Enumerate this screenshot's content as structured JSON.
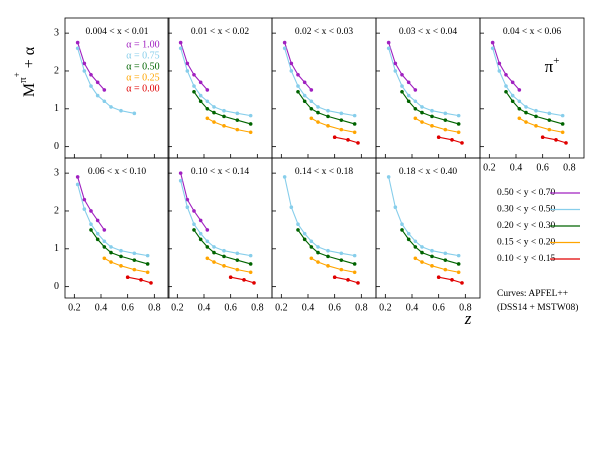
{
  "chart_data": {
    "type": "line",
    "y_label": [
      "M",
      "π",
      "+",
      " + α"
    ],
    "x_label": "z",
    "particle": [
      "π",
      "+"
    ],
    "xlim": [
      0.13,
      0.91
    ],
    "ylim": [
      -0.3,
      3.4
    ],
    "xticks": [
      0.2,
      0.4,
      0.6,
      0.8
    ],
    "yticks": [
      0,
      1,
      2,
      3
    ],
    "alpha_labels": [
      {
        "text": "α = 1.00",
        "color": "#a020c0"
      },
      {
        "text": "α = 0.75",
        "color": "#87ceeb"
      },
      {
        "text": "α = 0.50",
        "color": "#006400"
      },
      {
        "text": "α = 0.25",
        "color": "#ffa500"
      },
      {
        "text": "α = 0.00",
        "color": "#e00000"
      }
    ],
    "legend": [
      {
        "name": "0.50 < y < 0.70",
        "color": "#a020c0"
      },
      {
        "name": "0.30 < y < 0.50",
        "color": "#87ceeb"
      },
      {
        "name": "0.20 < y < 0.30",
        "color": "#006400"
      },
      {
        "name": "0.15 < y < 0.20",
        "color": "#ffa500"
      },
      {
        "name": "0.10 < y < 0.15",
        "color": "#e00000"
      }
    ],
    "note": [
      "Curves: APFEL++",
      "(DSS14 + MSTW08)"
    ],
    "panels": [
      {
        "title": "0.004 < x < 0.01",
        "series": [
          {
            "color": "#a020c0",
            "x": [
              0.225,
              0.275,
              0.325,
              0.375,
              0.425
            ],
            "values": [
              2.75,
              2.2,
              1.9,
              1.7,
              1.5
            ]
          },
          {
            "color": "#87ceeb",
            "x": [
              0.225,
              0.275,
              0.325,
              0.375,
              0.425,
              0.475,
              0.55,
              0.65
            ],
            "values": [
              2.6,
              2.0,
              1.6,
              1.35,
              1.2,
              1.05,
              0.95,
              0.88
            ]
          }
        ]
      },
      {
        "title": "0.01 < x < 0.02",
        "series": [
          {
            "color": "#a020c0",
            "x": [
              0.225,
              0.275,
              0.325,
              0.375,
              0.425
            ],
            "values": [
              2.75,
              2.2,
              1.9,
              1.7,
              1.5
            ]
          },
          {
            "color": "#87ceeb",
            "x": [
              0.225,
              0.275,
              0.325,
              0.375,
              0.425,
              0.475,
              0.55,
              0.65,
              0.75
            ],
            "values": [
              2.6,
              2.0,
              1.6,
              1.35,
              1.2,
              1.05,
              0.95,
              0.88,
              0.82
            ]
          },
          {
            "color": "#006400",
            "x": [
              0.325,
              0.375,
              0.425,
              0.475,
              0.55,
              0.65,
              0.75
            ],
            "values": [
              1.45,
              1.2,
              1.0,
              0.9,
              0.8,
              0.7,
              0.6
            ]
          },
          {
            "color": "#ffa500",
            "x": [
              0.425,
              0.475,
              0.55,
              0.65,
              0.75
            ],
            "values": [
              0.75,
              0.65,
              0.55,
              0.45,
              0.38
            ]
          }
        ]
      },
      {
        "title": "0.02 < x < 0.03",
        "series": [
          {
            "color": "#a020c0",
            "x": [
              0.225,
              0.275,
              0.325,
              0.375,
              0.425
            ],
            "values": [
              2.75,
              2.2,
              1.9,
              1.7,
              1.5
            ]
          },
          {
            "color": "#87ceeb",
            "x": [
              0.225,
              0.275,
              0.325,
              0.375,
              0.425,
              0.475,
              0.55,
              0.65,
              0.75
            ],
            "values": [
              2.6,
              2.0,
              1.6,
              1.35,
              1.2,
              1.05,
              0.95,
              0.88,
              0.82
            ]
          },
          {
            "color": "#006400",
            "x": [
              0.325,
              0.375,
              0.425,
              0.475,
              0.55,
              0.65,
              0.75
            ],
            "values": [
              1.45,
              1.2,
              1.0,
              0.9,
              0.8,
              0.7,
              0.6
            ]
          },
          {
            "color": "#ffa500",
            "x": [
              0.425,
              0.475,
              0.55,
              0.65,
              0.75
            ],
            "values": [
              0.75,
              0.65,
              0.55,
              0.45,
              0.38
            ]
          },
          {
            "color": "#e00000",
            "x": [
              0.6,
              0.7,
              0.775
            ],
            "values": [
              0.25,
              0.18,
              0.1
            ]
          }
        ]
      },
      {
        "title": "0.03 < x < 0.04",
        "series": [
          {
            "color": "#a020c0",
            "x": [
              0.225,
              0.275,
              0.325,
              0.375,
              0.425
            ],
            "values": [
              2.75,
              2.2,
              1.9,
              1.7,
              1.5
            ]
          },
          {
            "color": "#87ceeb",
            "x": [
              0.225,
              0.275,
              0.325,
              0.375,
              0.425,
              0.475,
              0.55,
              0.65,
              0.75
            ],
            "values": [
              2.6,
              2.0,
              1.6,
              1.35,
              1.2,
              1.05,
              0.95,
              0.88,
              0.82
            ]
          },
          {
            "color": "#006400",
            "x": [
              0.325,
              0.375,
              0.425,
              0.475,
              0.55,
              0.65,
              0.75
            ],
            "values": [
              1.45,
              1.2,
              1.0,
              0.9,
              0.8,
              0.7,
              0.6
            ]
          },
          {
            "color": "#ffa500",
            "x": [
              0.425,
              0.475,
              0.55,
              0.65,
              0.75
            ],
            "values": [
              0.75,
              0.65,
              0.55,
              0.45,
              0.38
            ]
          },
          {
            "color": "#e00000",
            "x": [
              0.6,
              0.7,
              0.775
            ],
            "values": [
              0.25,
              0.18,
              0.1
            ]
          }
        ]
      },
      {
        "title": "0.04 < x < 0.06",
        "series": [
          {
            "color": "#a020c0",
            "x": [
              0.225,
              0.275,
              0.325,
              0.375,
              0.425
            ],
            "values": [
              2.75,
              2.2,
              1.9,
              1.7,
              1.5
            ]
          },
          {
            "color": "#87ceeb",
            "x": [
              0.225,
              0.275,
              0.325,
              0.375,
              0.425,
              0.475,
              0.55,
              0.65,
              0.75
            ],
            "values": [
              2.6,
              2.0,
              1.6,
              1.35,
              1.2,
              1.05,
              0.95,
              0.88,
              0.82
            ]
          },
          {
            "color": "#006400",
            "x": [
              0.325,
              0.375,
              0.425,
              0.475,
              0.55,
              0.65,
              0.75
            ],
            "values": [
              1.45,
              1.2,
              1.0,
              0.9,
              0.8,
              0.7,
              0.6
            ]
          },
          {
            "color": "#ffa500",
            "x": [
              0.425,
              0.475,
              0.55,
              0.65,
              0.75
            ],
            "values": [
              0.75,
              0.65,
              0.55,
              0.45,
              0.38
            ]
          },
          {
            "color": "#e00000",
            "x": [
              0.6,
              0.7,
              0.775
            ],
            "values": [
              0.25,
              0.18,
              0.1
            ]
          }
        ]
      },
      {
        "title": "0.06 < x < 0.10",
        "series": [
          {
            "color": "#a020c0",
            "x": [
              0.225,
              0.275,
              0.325,
              0.375,
              0.425
            ],
            "values": [
              2.9,
              2.3,
              2.0,
              1.75,
              1.5
            ]
          },
          {
            "color": "#87ceeb",
            "x": [
              0.225,
              0.275,
              0.325,
              0.375,
              0.425,
              0.475,
              0.55,
              0.65,
              0.75
            ],
            "values": [
              2.7,
              2.05,
              1.65,
              1.4,
              1.2,
              1.05,
              0.95,
              0.88,
              0.82
            ]
          },
          {
            "color": "#006400",
            "x": [
              0.325,
              0.375,
              0.425,
              0.475,
              0.55,
              0.65,
              0.75
            ],
            "values": [
              1.5,
              1.25,
              1.05,
              0.9,
              0.8,
              0.7,
              0.6
            ]
          },
          {
            "color": "#ffa500",
            "x": [
              0.425,
              0.475,
              0.55,
              0.65,
              0.75
            ],
            "values": [
              0.75,
              0.65,
              0.55,
              0.45,
              0.38
            ]
          },
          {
            "color": "#e00000",
            "x": [
              0.6,
              0.7,
              0.775
            ],
            "values": [
              0.25,
              0.18,
              0.1
            ]
          }
        ]
      },
      {
        "title": "0.10 < x < 0.14",
        "series": [
          {
            "color": "#a020c0",
            "x": [
              0.225,
              0.275,
              0.325,
              0.375,
              0.425
            ],
            "values": [
              3.0,
              2.3,
              2.0,
              1.75,
              1.5
            ]
          },
          {
            "color": "#87ceeb",
            "x": [
              0.225,
              0.275,
              0.325,
              0.375,
              0.425,
              0.475,
              0.55,
              0.65,
              0.75
            ],
            "values": [
              2.8,
              2.1,
              1.65,
              1.4,
              1.2,
              1.05,
              0.95,
              0.88,
              0.82
            ]
          },
          {
            "color": "#006400",
            "x": [
              0.325,
              0.375,
              0.425,
              0.475,
              0.55,
              0.65,
              0.75
            ],
            "values": [
              1.5,
              1.25,
              1.05,
              0.9,
              0.8,
              0.7,
              0.6
            ]
          },
          {
            "color": "#ffa500",
            "x": [
              0.425,
              0.475,
              0.55,
              0.65,
              0.75
            ],
            "values": [
              0.75,
              0.65,
              0.55,
              0.45,
              0.38
            ]
          },
          {
            "color": "#e00000",
            "x": [
              0.6,
              0.7,
              0.775
            ],
            "values": [
              0.25,
              0.18,
              0.1
            ]
          }
        ]
      },
      {
        "title": "0.14 < x < 0.18",
        "series": [
          {
            "color": "#87ceeb",
            "x": [
              0.225,
              0.275,
              0.325,
              0.375,
              0.425,
              0.475,
              0.55,
              0.65,
              0.75
            ],
            "values": [
              2.9,
              2.1,
              1.65,
              1.4,
              1.2,
              1.05,
              0.95,
              0.88,
              0.82
            ]
          },
          {
            "color": "#006400",
            "x": [
              0.325,
              0.375,
              0.425,
              0.475,
              0.55,
              0.65,
              0.75
            ],
            "values": [
              1.5,
              1.25,
              1.05,
              0.9,
              0.8,
              0.7,
              0.6
            ]
          },
          {
            "color": "#ffa500",
            "x": [
              0.425,
              0.475,
              0.55,
              0.65,
              0.75
            ],
            "values": [
              0.75,
              0.65,
              0.55,
              0.45,
              0.38
            ]
          },
          {
            "color": "#e00000",
            "x": [
              0.6,
              0.7,
              0.775
            ],
            "values": [
              0.25,
              0.18,
              0.1
            ]
          }
        ]
      },
      {
        "title": "0.18 < x < 0.40",
        "series": [
          {
            "color": "#87ceeb",
            "x": [
              0.225,
              0.275,
              0.325,
              0.375,
              0.425,
              0.475,
              0.55,
              0.65,
              0.75
            ],
            "values": [
              2.9,
              2.1,
              1.65,
              1.4,
              1.2,
              1.05,
              0.95,
              0.88,
              0.82
            ]
          },
          {
            "color": "#006400",
            "x": [
              0.325,
              0.375,
              0.425,
              0.475,
              0.55,
              0.65,
              0.75
            ],
            "values": [
              1.5,
              1.25,
              1.05,
              0.9,
              0.8,
              0.7,
              0.6
            ]
          },
          {
            "color": "#ffa500",
            "x": [
              0.425,
              0.475,
              0.55,
              0.65,
              0.75
            ],
            "values": [
              0.75,
              0.65,
              0.55,
              0.45,
              0.38
            ]
          },
          {
            "color": "#e00000",
            "x": [
              0.6,
              0.7,
              0.775
            ],
            "values": [
              0.25,
              0.18,
              0.1
            ]
          }
        ]
      }
    ]
  }
}
